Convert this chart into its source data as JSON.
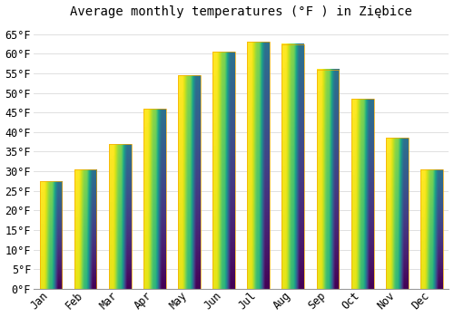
{
  "months": [
    "Jan",
    "Feb",
    "Mar",
    "Apr",
    "May",
    "Jun",
    "Jul",
    "Aug",
    "Sep",
    "Oct",
    "Nov",
    "Dec"
  ],
  "values": [
    27.5,
    30.5,
    37.0,
    46.0,
    54.5,
    60.5,
    63.0,
    62.5,
    56.0,
    48.5,
    38.5,
    30.5
  ],
  "bar_color_face": "#FFC125",
  "bar_color_edge": "#F5A800",
  "background_color": "#FFFFFF",
  "plot_bg_color": "#FFFFFF",
  "title": "Average monthly temperatures (°F ) in Ziębice",
  "title_fontsize": 10,
  "tick_label_fontsize": 8.5,
  "ytick_labels": [
    "0°F",
    "5°F",
    "10°F",
    "15°F",
    "20°F",
    "25°F",
    "30°F",
    "35°F",
    "40°F",
    "45°F",
    "50°F",
    "55°F",
    "60°F",
    "65°F"
  ],
  "ytick_values": [
    0,
    5,
    10,
    15,
    20,
    25,
    30,
    35,
    40,
    45,
    50,
    55,
    60,
    65
  ],
  "ylim": [
    0,
    68
  ],
  "grid_color": "#E0E0E0",
  "font_family": "monospace"
}
